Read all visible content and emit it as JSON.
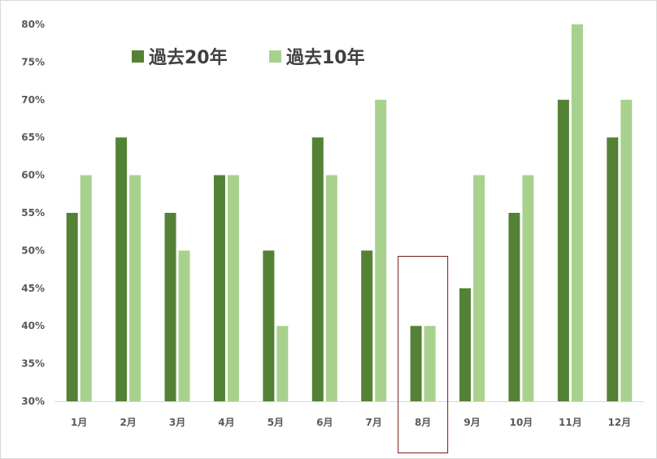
{
  "chart_data": {
    "type": "bar",
    "categories": [
      "1月",
      "2月",
      "3月",
      "4月",
      "5月",
      "6月",
      "7月",
      "8月",
      "9月",
      "10月",
      "11月",
      "12月"
    ],
    "series": [
      {
        "name": "過去20年",
        "color": "#548235",
        "values": [
          55,
          65,
          55,
          60,
          50,
          65,
          50,
          40,
          45,
          55,
          70,
          65
        ]
      },
      {
        "name": "過去10年",
        "color": "#a9d18e",
        "values": [
          60,
          60,
          50,
          60,
          40,
          60,
          70,
          40,
          60,
          60,
          80,
          70
        ]
      }
    ],
    "y_ticks": [
      "30%",
      "35%",
      "40%",
      "45%",
      "50%",
      "55%",
      "60%",
      "65%",
      "70%",
      "75%",
      "80%"
    ],
    "ylim": [
      30,
      80
    ],
    "y_unit": "%",
    "legend_position": "top-left",
    "grid": false,
    "highlight": {
      "category": "8月",
      "color": "#7b1a1a"
    }
  }
}
